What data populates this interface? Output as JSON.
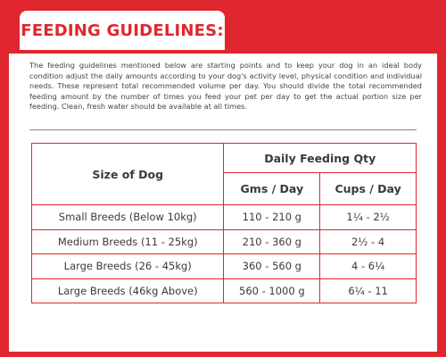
{
  "heading": "FEEDING GUIDELINES:",
  "intro": "The feeding guidelines mentioned below are starting points and to keep your dog in an ideal body condition adjust the daily amounts according to your dog's activity level, physical condition and individual needs. These represent total recommended volume per day. You should divide the total recommended feeding amount by the number of times you feed your pet per day to get the actual portion size per feeding. Clean, fresh water should be available at all times.",
  "table": {
    "size_header": "Size of Dog",
    "daily_header": "Daily Feeding Qty",
    "gms_header": "Gms / Day",
    "cups_header": "Cups / Day",
    "rows": [
      {
        "size": "Small Breeds (Below 10kg)",
        "gms": "110 - 210 g",
        "cups": "1¼ - 2½"
      },
      {
        "size": "Medium Breeds (11 - 25kg)",
        "gms": "210 - 360 g",
        "cups": "2½ - 4"
      },
      {
        "size": "Large Breeds (26 - 45kg)",
        "gms": "360 - 560 g",
        "cups": "4 - 6¼"
      },
      {
        "size": "Large Breeds (46kg Above)",
        "gms": "560 - 1000 g",
        "cups": "6¼ - 11"
      }
    ]
  },
  "colors": {
    "accent": "#e0262e",
    "text": "#3a3a3a"
  }
}
